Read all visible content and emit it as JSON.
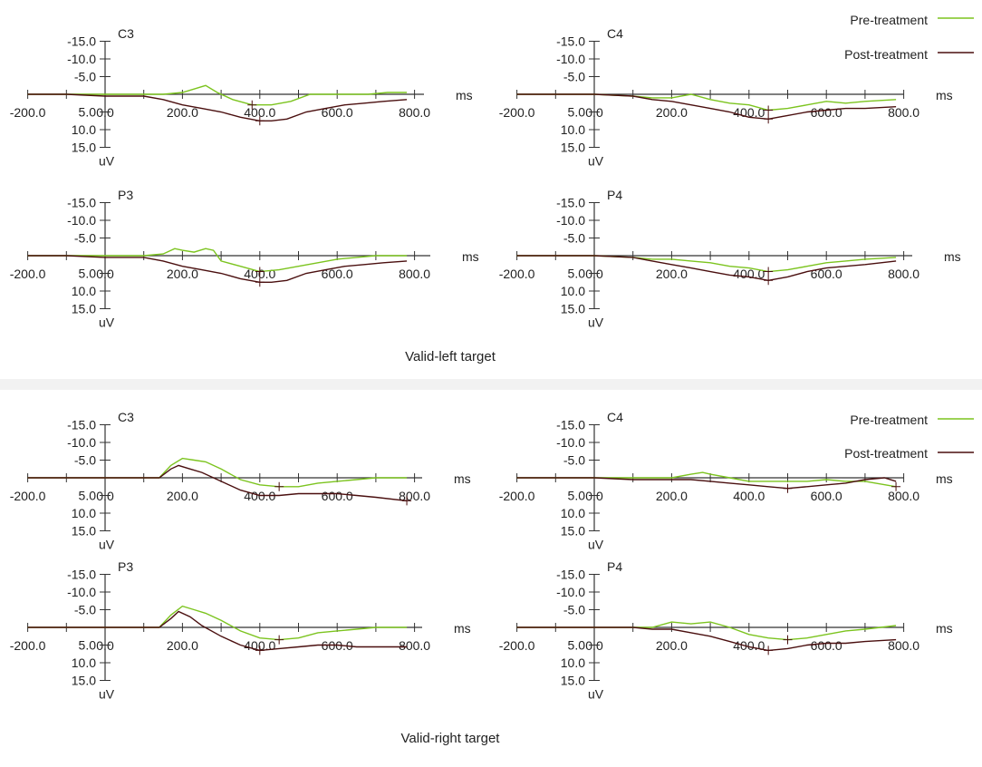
{
  "colors": {
    "pre": "#7cc41f",
    "post": "#4a0f0f",
    "axis": "#333333"
  },
  "legends": [
    {
      "pre_label": "Pre-treatment",
      "post_label": "Post-treatment"
    },
    {
      "pre_label": "Pre-treatment",
      "post_label": "Post-treatment"
    }
  ],
  "captions": {
    "top": "Valid-left target",
    "bottom": "Valid-right target"
  },
  "axis": {
    "x_ticks": [
      "-200.0",
      "0.0",
      "200.0",
      "400.0",
      "600.0",
      "800.0"
    ],
    "y_ticks": [
      "-15.0",
      "-10.0",
      "-5.0",
      "5.0",
      "10.0",
      "15.0"
    ],
    "x_unit": "ms",
    "y_unit": "uV"
  },
  "chart_data": [
    {
      "type": "line",
      "title": "C3",
      "group": "Valid-left target",
      "xlabel": "ms",
      "ylabel": "uV",
      "xlim": [
        -200,
        800
      ],
      "ylim": [
        -15,
        15
      ],
      "y_inverted": true,
      "series": [
        {
          "name": "Pre-treatment",
          "x": [
            -200,
            -100,
            0,
            100,
            150,
            200,
            230,
            260,
            290,
            330,
            380,
            430,
            480,
            530,
            580,
            630,
            680,
            730,
            780
          ],
          "y": [
            0,
            0,
            0,
            0,
            0,
            -0.5,
            -1.5,
            -2.5,
            -0.5,
            1.5,
            3,
            3,
            2,
            0,
            0,
            0,
            0,
            -0.5,
            -0.5
          ]
        },
        {
          "name": "Post-treatment",
          "x": [
            -200,
            -100,
            0,
            100,
            150,
            200,
            250,
            300,
            350,
            400,
            430,
            470,
            520,
            570,
            620,
            670,
            720,
            780
          ],
          "y": [
            0,
            0,
            0.5,
            0.5,
            1.5,
            3,
            4,
            5,
            6.5,
            7.5,
            7.5,
            7,
            5,
            4,
            3,
            2.5,
            2,
            1.5
          ]
        }
      ]
    },
    {
      "type": "line",
      "title": "C4",
      "group": "Valid-left target",
      "xlabel": "ms",
      "ylabel": "uV",
      "xlim": [
        -200,
        800
      ],
      "ylim": [
        -15,
        15
      ],
      "y_inverted": true,
      "series": [
        {
          "name": "Pre-treatment",
          "x": [
            -200,
            -100,
            0,
            100,
            150,
            200,
            250,
            300,
            350,
            400,
            450,
            500,
            550,
            600,
            650,
            700,
            780
          ],
          "y": [
            0,
            0,
            0,
            0.5,
            1,
            1,
            0,
            1.5,
            2.5,
            3,
            4.5,
            4,
            3,
            2,
            2.5,
            2,
            1.5
          ]
        },
        {
          "name": "Post-treatment",
          "x": [
            -200,
            -100,
            0,
            100,
            150,
            200,
            250,
            300,
            350,
            400,
            450,
            500,
            550,
            600,
            650,
            700,
            780
          ],
          "y": [
            0,
            0,
            0,
            0.5,
            1.5,
            2,
            3,
            4,
            5,
            6.5,
            7,
            6,
            5,
            4.5,
            4,
            4,
            3.5
          ]
        }
      ]
    },
    {
      "type": "line",
      "title": "P3",
      "group": "Valid-left target",
      "xlabel": "ms",
      "ylabel": "uV",
      "xlim": [
        -200,
        800
      ],
      "ylim": [
        -15,
        15
      ],
      "y_inverted": true,
      "series": [
        {
          "name": "Pre-treatment",
          "x": [
            -200,
            -100,
            0,
            100,
            150,
            180,
            200,
            230,
            260,
            280,
            300,
            350,
            400,
            450,
            500,
            550,
            600,
            650,
            700,
            780
          ],
          "y": [
            0,
            0,
            0,
            0,
            -0.5,
            -2,
            -1.5,
            -1,
            -2,
            -1.5,
            1.5,
            3,
            4.5,
            4,
            3,
            2,
            1,
            0.5,
            0,
            0
          ]
        },
        {
          "name": "Post-treatment",
          "x": [
            -200,
            -100,
            0,
            100,
            150,
            200,
            250,
            300,
            350,
            400,
            430,
            470,
            520,
            570,
            620,
            670,
            720,
            780
          ],
          "y": [
            0,
            0,
            0.5,
            0.5,
            1.5,
            3,
            4,
            5,
            6.5,
            7.5,
            7.5,
            7,
            5,
            4,
            3,
            2.5,
            2,
            1.5
          ]
        }
      ]
    },
    {
      "type": "line",
      "title": "P4",
      "group": "Valid-left target",
      "xlabel": "ms",
      "ylabel": "uV",
      "xlim": [
        -200,
        800
      ],
      "ylim": [
        -15,
        15
      ],
      "y_inverted": true,
      "series": [
        {
          "name": "Pre-treatment",
          "x": [
            -200,
            -100,
            0,
            100,
            150,
            200,
            250,
            300,
            350,
            400,
            450,
            500,
            550,
            600,
            650,
            700,
            780
          ],
          "y": [
            0,
            0,
            0,
            0.5,
            1,
            1,
            1.5,
            2,
            3,
            3.5,
            4.5,
            4,
            3,
            2,
            1.5,
            1,
            0.5
          ]
        },
        {
          "name": "Post-treatment",
          "x": [
            -200,
            -100,
            0,
            100,
            150,
            200,
            250,
            300,
            350,
            400,
            450,
            500,
            550,
            600,
            650,
            700,
            780
          ],
          "y": [
            0,
            0,
            0,
            0.5,
            1.5,
            2.5,
            3.5,
            4.5,
            5.5,
            6,
            7,
            6,
            4.5,
            3.5,
            3,
            2.5,
            1.5
          ]
        }
      ]
    },
    {
      "type": "line",
      "title": "C3",
      "group": "Valid-right target",
      "xlabel": "ms",
      "ylabel": "uV",
      "xlim": [
        -200,
        800
      ],
      "ylim": [
        -15,
        15
      ],
      "y_inverted": true,
      "series": [
        {
          "name": "Pre-treatment",
          "x": [
            -200,
            -100,
            0,
            100,
            140,
            170,
            200,
            230,
            260,
            300,
            350,
            400,
            450,
            500,
            550,
            600,
            650,
            700,
            780
          ],
          "y": [
            0,
            0,
            0,
            0,
            0,
            -3.5,
            -5.5,
            -5,
            -4.5,
            -2.5,
            0.5,
            2,
            2.5,
            2.5,
            1.5,
            1,
            0.5,
            0,
            0
          ]
        },
        {
          "name": "Post-treatment",
          "x": [
            -200,
            -100,
            0,
            100,
            140,
            170,
            190,
            220,
            250,
            300,
            350,
            400,
            450,
            500,
            550,
            600,
            650,
            700,
            780
          ],
          "y": [
            0,
            0,
            0,
            0,
            0,
            -2.5,
            -3.5,
            -2.5,
            -1.5,
            1,
            3.5,
            5,
            5,
            4.5,
            4.5,
            4.5,
            5,
            5.5,
            6.5
          ]
        }
      ]
    },
    {
      "type": "line",
      "title": "C4",
      "group": "Valid-right target",
      "xlabel": "ms",
      "ylabel": "uV",
      "xlim": [
        -200,
        800
      ],
      "ylim": [
        -15,
        15
      ],
      "y_inverted": true,
      "series": [
        {
          "name": "Pre-treatment",
          "x": [
            -200,
            -100,
            0,
            100,
            150,
            200,
            250,
            280,
            300,
            350,
            400,
            450,
            500,
            550,
            600,
            650,
            700,
            780
          ],
          "y": [
            0,
            0,
            0,
            0,
            0,
            0,
            -1,
            -1.5,
            -1,
            0,
            1,
            1,
            1,
            1,
            0.5,
            1,
            1,
            2.5
          ]
        },
        {
          "name": "Post-treatment",
          "x": [
            -200,
            -100,
            0,
            100,
            150,
            200,
            250,
            300,
            350,
            400,
            450,
            500,
            550,
            600,
            650,
            700,
            750,
            780
          ],
          "y": [
            0,
            0,
            0,
            0.5,
            0.5,
            0.5,
            0.5,
            1,
            1.5,
            2,
            2.5,
            3,
            2.5,
            2,
            1.5,
            0.5,
            0,
            1
          ]
        }
      ]
    },
    {
      "type": "line",
      "title": "P3",
      "group": "Valid-right target",
      "xlabel": "ms",
      "ylabel": "uV",
      "xlim": [
        -200,
        800
      ],
      "ylim": [
        -15,
        15
      ],
      "y_inverted": true,
      "series": [
        {
          "name": "Pre-treatment",
          "x": [
            -200,
            -100,
            0,
            100,
            140,
            170,
            200,
            230,
            260,
            300,
            350,
            400,
            450,
            500,
            550,
            600,
            650,
            700,
            780
          ],
          "y": [
            0,
            0,
            0,
            0,
            0,
            -3.5,
            -6,
            -5,
            -4,
            -2,
            1,
            3,
            3.5,
            3,
            1.5,
            1,
            0.5,
            0,
            0
          ]
        },
        {
          "name": "Post-treatment",
          "x": [
            -200,
            -100,
            0,
            100,
            140,
            170,
            190,
            220,
            250,
            300,
            350,
            400,
            450,
            500,
            550,
            600,
            650,
            700,
            780
          ],
          "y": [
            0,
            0,
            0,
            0,
            0,
            -2.5,
            -4.5,
            -3,
            -0.5,
            2.5,
            5,
            6.5,
            6,
            5.5,
            5,
            5,
            5.5,
            5.5,
            5.5
          ]
        }
      ]
    },
    {
      "type": "line",
      "title": "P4",
      "group": "Valid-right target",
      "xlabel": "ms",
      "ylabel": "uV",
      "xlim": [
        -200,
        800
      ],
      "ylim": [
        -15,
        15
      ],
      "y_inverted": true,
      "series": [
        {
          "name": "Pre-treatment",
          "x": [
            -200,
            -100,
            0,
            100,
            150,
            200,
            250,
            300,
            350,
            400,
            450,
            500,
            550,
            600,
            650,
            700,
            780
          ],
          "y": [
            0,
            0,
            0,
            0,
            0,
            -1.5,
            -1,
            -1.5,
            0,
            2,
            3,
            3.5,
            3,
            2,
            1,
            0.5,
            -0.5
          ]
        },
        {
          "name": "Post-treatment",
          "x": [
            -200,
            -100,
            0,
            100,
            150,
            200,
            250,
            300,
            350,
            400,
            450,
            500,
            550,
            600,
            650,
            700,
            780
          ],
          "y": [
            0,
            0,
            0,
            0,
            0.5,
            0.5,
            1.5,
            2.5,
            4,
            5.5,
            6.5,
            6,
            5,
            4.5,
            4.5,
            4,
            3.5
          ]
        }
      ]
    }
  ]
}
